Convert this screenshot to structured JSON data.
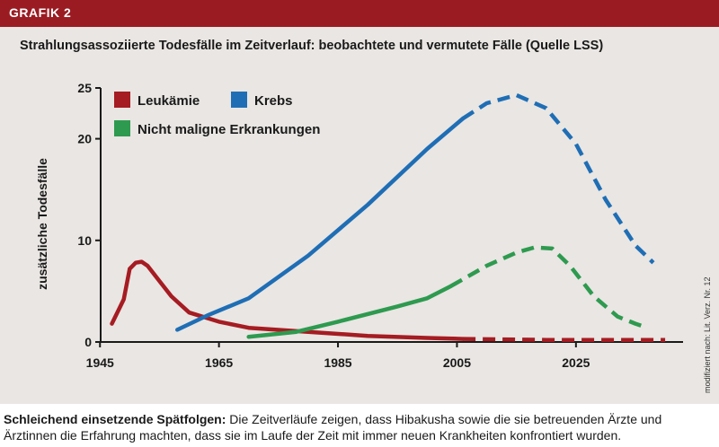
{
  "header": {
    "label": "GRAFIK 2"
  },
  "side_note": "modifiziert nach: Lit. Verz. Nr. 12",
  "caption": {
    "bold": "Schleichend einsetzende Spätfolgen:",
    "text": " Die Zeitverläufe zeigen, dass Hibakusha sowie die sie betreuenden Ärzte und Ärztinnen die Erfahrung machten, dass sie im Laufe der Zeit mit immer neuen Krankheiten konfrontiert wurden."
  },
  "colors": {
    "header": "#9b1b22",
    "panel": "#e9e6e3"
  },
  "chart_data": {
    "type": "line",
    "title": "Strahlungsassoziierte Todesfälle im Zeitverlauf: beobachtete und vermutete Fälle (Quelle LSS)",
    "xlabel": "",
    "ylabel": "zusätzliche Todesfälle",
    "xlim": [
      1943,
      2043
    ],
    "ylim": [
      0,
      25
    ],
    "x_ticks": [
      1945,
      1965,
      1985,
      2005,
      2025
    ],
    "y_ticks": [
      0,
      10,
      20,
      25
    ],
    "legend_position": "top-left",
    "grid": false,
    "series": [
      {
        "name": "Leukämie",
        "color": "#a51c22",
        "observed": [
          [
            1947,
            1.8
          ],
          [
            1949,
            4.2
          ],
          [
            1950,
            7.2
          ],
          [
            1951,
            7.8
          ],
          [
            1952,
            7.9
          ],
          [
            1953,
            7.5
          ],
          [
            1955,
            6.0
          ],
          [
            1957,
            4.5
          ],
          [
            1960,
            2.9
          ],
          [
            1965,
            2.0
          ],
          [
            1970,
            1.4
          ],
          [
            1980,
            1.0
          ],
          [
            1990,
            0.6
          ],
          [
            2000,
            0.4
          ],
          [
            2006,
            0.3
          ]
        ],
        "projected": [
          [
            2006,
            0.3
          ],
          [
            2020,
            0.2
          ],
          [
            2040,
            0.2
          ]
        ]
      },
      {
        "name": "Krebs",
        "color": "#1f6eb5",
        "observed": [
          [
            1958,
            1.2
          ],
          [
            1963,
            2.6
          ],
          [
            1970,
            4.3
          ],
          [
            1980,
            8.5
          ],
          [
            1990,
            13.5
          ],
          [
            2000,
            19.0
          ],
          [
            2006,
            22.0
          ]
        ],
        "projected": [
          [
            2006,
            22.0
          ],
          [
            2010,
            23.5
          ],
          [
            2015,
            24.3
          ],
          [
            2020,
            23.0
          ],
          [
            2025,
            19.5
          ],
          [
            2030,
            14.0
          ],
          [
            2035,
            9.5
          ],
          [
            2038,
            7.8
          ]
        ]
      },
      {
        "name": "Nicht maligne Erkrankungen",
        "color": "#2e9a4f",
        "observed": [
          [
            1970,
            0.5
          ],
          [
            1978,
            1.0
          ],
          [
            1985,
            2.0
          ],
          [
            1995,
            3.5
          ],
          [
            2000,
            4.3
          ],
          [
            2004,
            5.5
          ]
        ],
        "projected": [
          [
            2004,
            5.5
          ],
          [
            2010,
            7.5
          ],
          [
            2015,
            8.8
          ],
          [
            2018,
            9.3
          ],
          [
            2021,
            9.2
          ],
          [
            2024,
            7.5
          ],
          [
            2028,
            4.5
          ],
          [
            2032,
            2.5
          ],
          [
            2035,
            1.8
          ],
          [
            2037,
            1.4
          ]
        ]
      }
    ]
  }
}
